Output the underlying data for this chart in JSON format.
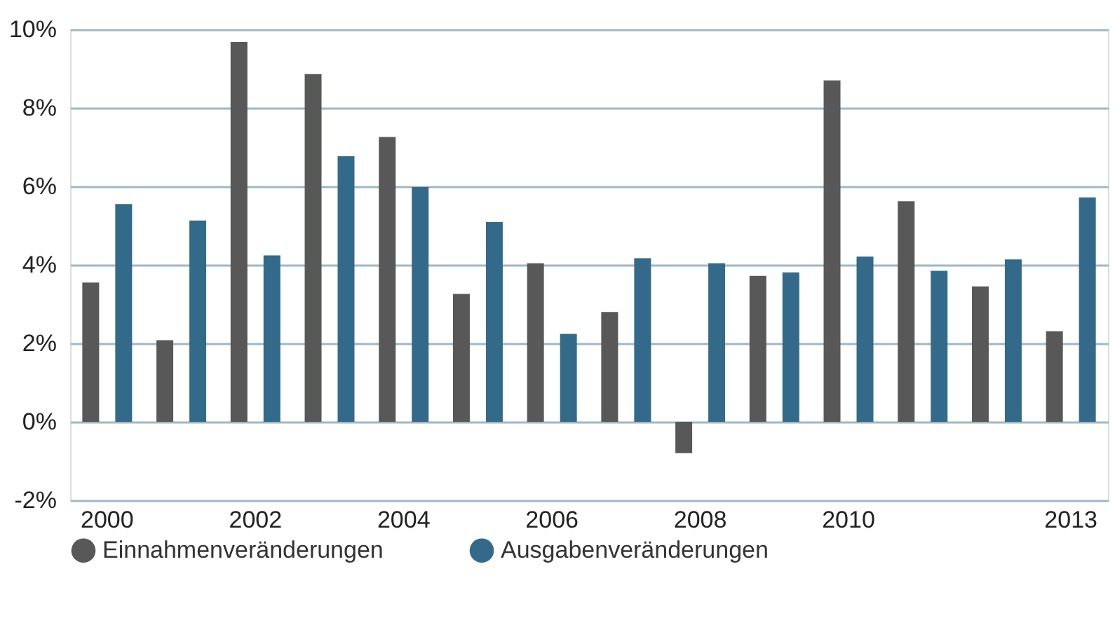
{
  "chart_data": {
    "type": "bar",
    "categories": [
      "2000",
      null,
      "2002",
      null,
      "2004",
      null,
      "2006",
      null,
      "2008",
      null,
      "2010",
      null,
      null,
      "2013"
    ],
    "series": [
      {
        "name": "Einnahmenveränderungen",
        "color": "#575857",
        "values": [
          3.55,
          2.08,
          9.68,
          8.86,
          7.26,
          3.26,
          4.04,
          2.8,
          -0.8,
          3.72,
          8.7,
          5.62,
          3.45,
          2.31
        ]
      },
      {
        "name": "Ausgabenveränderungen",
        "color": "#336a89",
        "values": [
          5.55,
          5.13,
          4.24,
          6.77,
          5.98,
          5.09,
          2.24,
          4.17,
          4.04,
          3.81,
          4.21,
          3.85,
          4.14,
          5.72
        ]
      }
    ],
    "ylim": [
      -2,
      10
    ],
    "yticks": [
      {
        "value": -2,
        "label": "-2%"
      },
      {
        "value": 0,
        "label": "0%"
      },
      {
        "value": 2,
        "label": "2%"
      },
      {
        "value": 4,
        "label": "4%"
      },
      {
        "value": 6,
        "label": "6%"
      },
      {
        "value": 8,
        "label": "8%"
      },
      {
        "value": 10,
        "label": "10%"
      }
    ],
    "grid": "y",
    "legend": "bottom"
  }
}
